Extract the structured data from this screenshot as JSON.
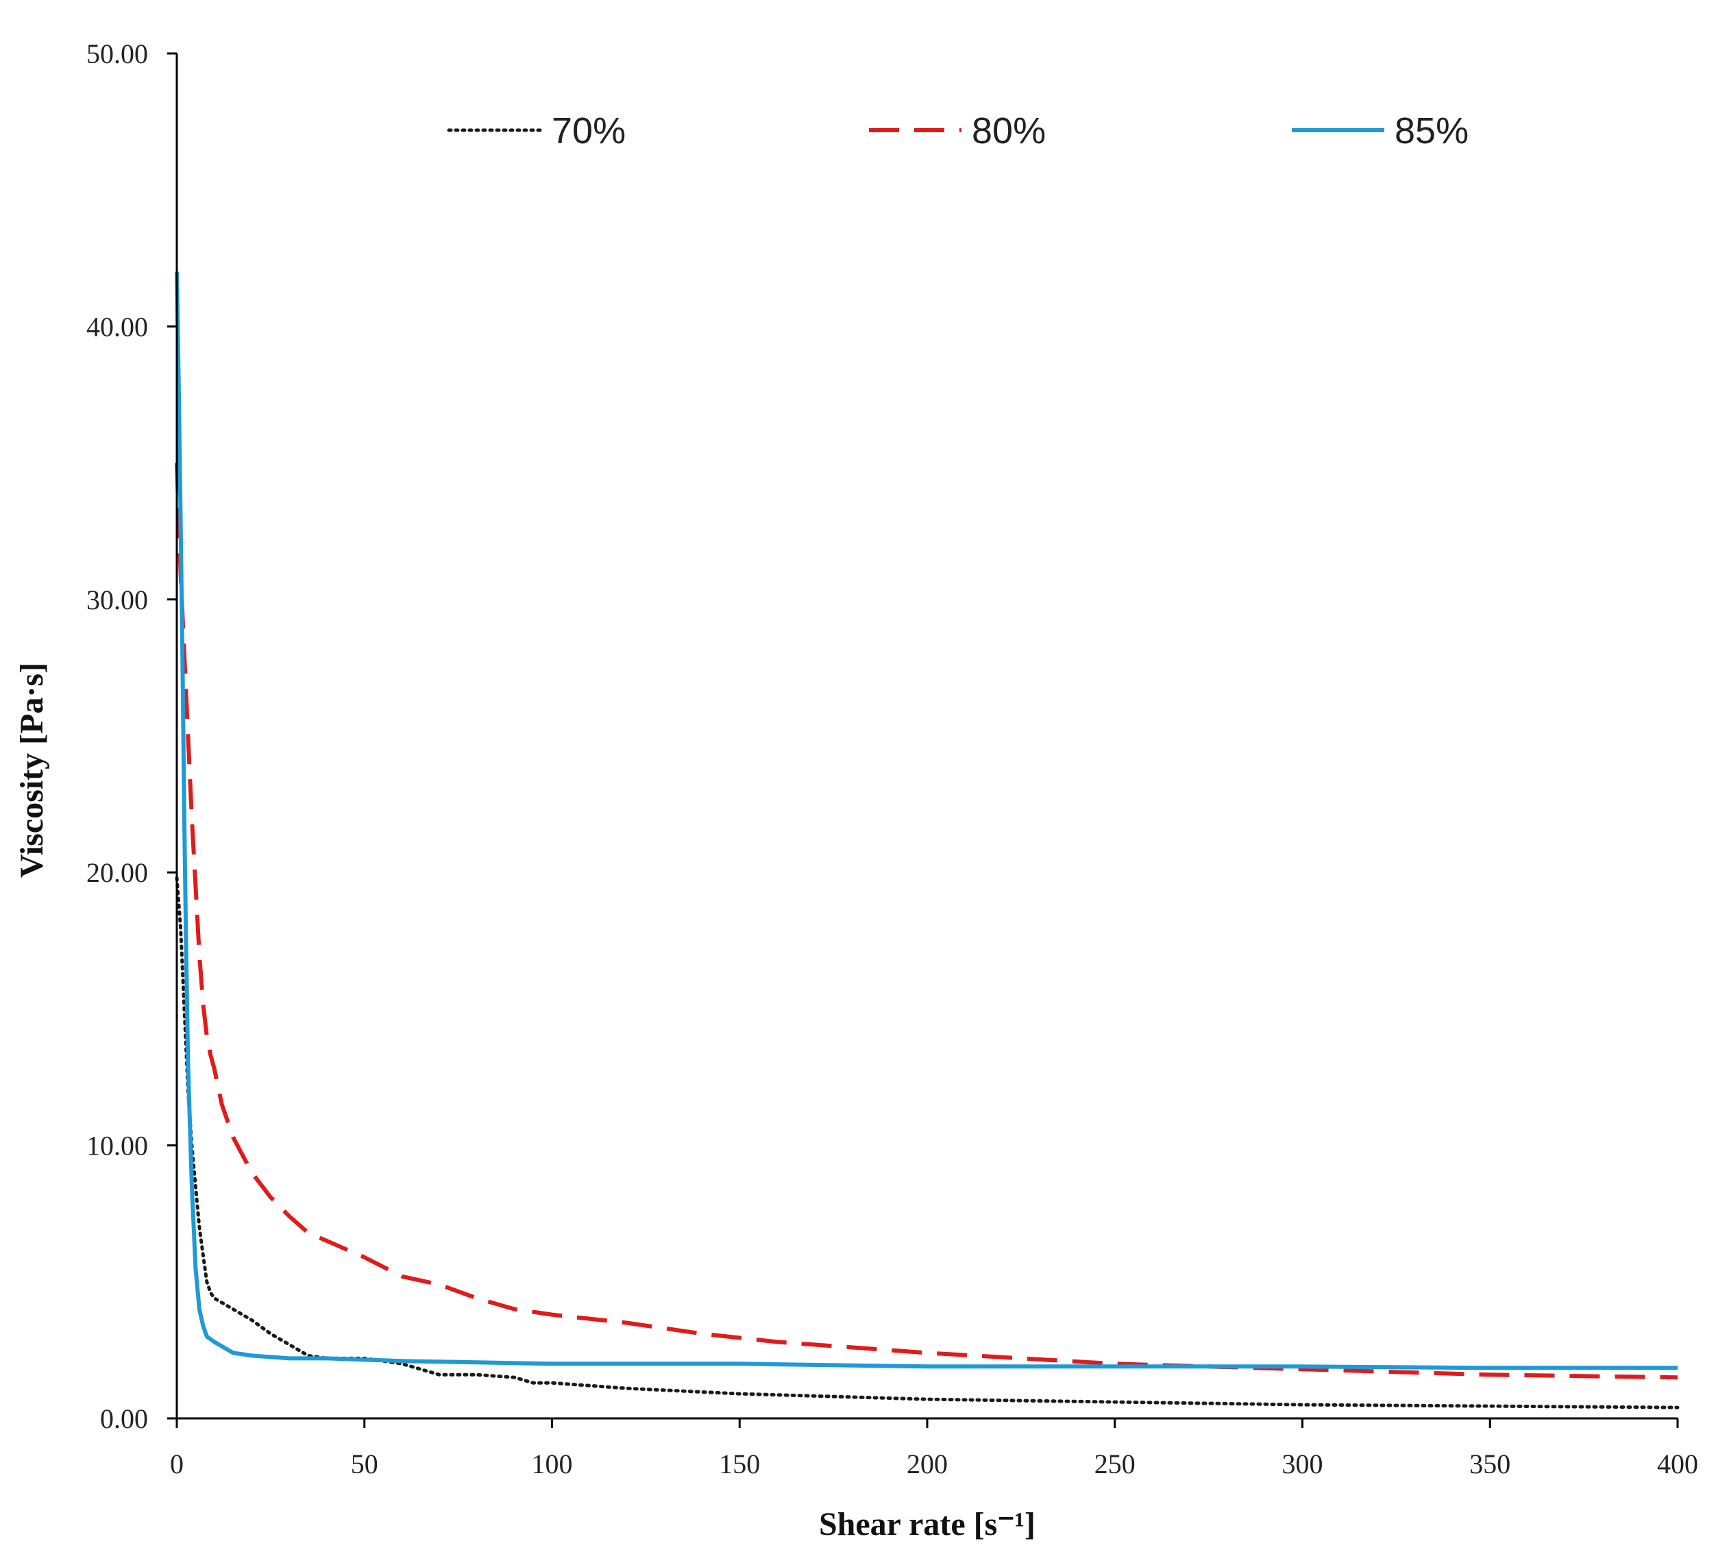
{
  "chart_data": {
    "type": "line",
    "title": "",
    "xlabel": "Shear rate [s⁻¹]",
    "ylabel": "Viscosity [Pa·s]",
    "xlim": [
      0,
      400
    ],
    "ylim": [
      0,
      50
    ],
    "x_ticks": [
      "0",
      "50",
      "100",
      "150",
      "200",
      "250",
      "300",
      "350",
      "400"
    ],
    "y_ticks": [
      "0.00",
      "10.00",
      "20.00",
      "30.00",
      "40.00",
      "50.00"
    ],
    "grid": false,
    "legend_position": "top",
    "series": [
      {
        "name": "70%",
        "color": "#1a1a1a",
        "style": "dotted",
        "x": [
          0,
          1,
          2,
          3,
          4,
          5,
          6,
          7,
          8,
          9,
          10,
          15,
          20,
          25,
          30,
          35,
          40,
          50,
          55,
          60,
          65,
          70,
          80,
          90,
          95,
          100,
          110,
          120,
          150,
          200,
          250,
          300,
          350,
          400
        ],
        "y": [
          19.8,
          18,
          15,
          12,
          10,
          8.5,
          7,
          6,
          5,
          4.6,
          4.4,
          4.0,
          3.6,
          3.1,
          2.7,
          2.3,
          2.2,
          2.2,
          2.1,
          2.0,
          1.8,
          1.6,
          1.6,
          1.5,
          1.3,
          1.3,
          1.2,
          1.1,
          0.9,
          0.7,
          0.6,
          0.5,
          0.45,
          0.4
        ]
      },
      {
        "name": "80%",
        "color": "#e01b1b",
        "style": "dashed",
        "x": [
          0,
          1,
          2,
          3,
          4,
          5,
          6,
          7,
          8,
          9,
          10,
          12,
          15,
          20,
          25,
          30,
          35,
          40,
          50,
          60,
          70,
          80,
          90,
          100,
          120,
          140,
          160,
          180,
          200,
          250,
          300,
          350,
          400
        ],
        "y": [
          35,
          31,
          28,
          25,
          22,
          19.5,
          17,
          15.2,
          14,
          13.3,
          12.8,
          11.5,
          10.3,
          9.0,
          8.1,
          7.4,
          6.8,
          6.5,
          5.9,
          5.2,
          4.9,
          4.4,
          4.0,
          3.8,
          3.5,
          3.1,
          2.8,
          2.6,
          2.4,
          2.0,
          1.8,
          1.6,
          1.5
        ]
      },
      {
        "name": "85%",
        "color": "#1f9ad6",
        "style": "solid",
        "x": [
          0,
          0.5,
          1,
          1.5,
          2,
          2.5,
          3,
          4,
          5,
          6,
          7,
          8,
          10,
          15,
          20,
          30,
          40,
          60,
          100,
          150,
          200,
          250,
          300,
          350,
          400
        ],
        "y": [
          42,
          38,
          33,
          28,
          22,
          17,
          13,
          8.5,
          5.5,
          4.0,
          3.4,
          3.0,
          2.8,
          2.4,
          2.3,
          2.2,
          2.2,
          2.1,
          2.0,
          2.0,
          1.9,
          1.9,
          1.9,
          1.85,
          1.85
        ]
      }
    ]
  }
}
